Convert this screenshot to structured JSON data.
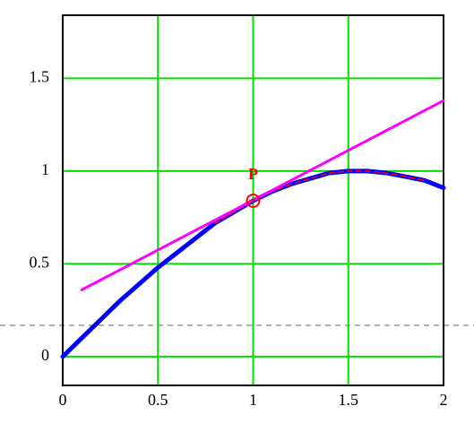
{
  "chart_data": {
    "type": "line",
    "xlim": [
      0,
      2
    ],
    "ylim": [
      -0.155,
      1.84
    ],
    "xticks": [
      0,
      0.5,
      1,
      1.5,
      2
    ],
    "yticks": [
      0,
      0.5,
      1,
      1.5
    ],
    "grid": true,
    "grid_color": "#00e000",
    "series": [
      {
        "color": "#0000ff",
        "width": 5,
        "dashed": false,
        "x": [
          0,
          0.1,
          0.2,
          0.3,
          0.4,
          0.5,
          0.6,
          0.7,
          0.8,
          0.9,
          1,
          1.1,
          1.2,
          1.3,
          1.4,
          1.5,
          1.6,
          1.7,
          1.8,
          1.9,
          2
        ],
        "values": [
          0,
          0.1,
          0.2,
          0.3,
          0.39,
          0.48,
          0.56,
          0.64,
          0.72,
          0.78,
          0.84,
          0.89,
          0.93,
          0.96,
          0.99,
          1,
          1,
          0.99,
          0.97,
          0.95,
          0.91
        ]
      },
      {
        "color": "#ff0000",
        "width": 1.5,
        "dashed": true,
        "x": [
          0.8,
          0.9,
          1,
          1.1,
          1.2,
          1.3,
          1.4,
          1.5,
          1.6,
          1.7,
          1.8,
          1.9
        ],
        "values": [
          0.72,
          0.78,
          0.84,
          0.89,
          0.93,
          0.96,
          0.99,
          1,
          1,
          0.99,
          0.97,
          0.95
        ]
      },
      {
        "color": "#ff00ff",
        "width": 3,
        "dashed": false,
        "x": [
          0.1,
          2
        ],
        "values": [
          0.36,
          1.38
        ]
      }
    ],
    "point": {
      "label": "P",
      "x": 1,
      "y": 0.84,
      "color": "#ff0000"
    }
  }
}
